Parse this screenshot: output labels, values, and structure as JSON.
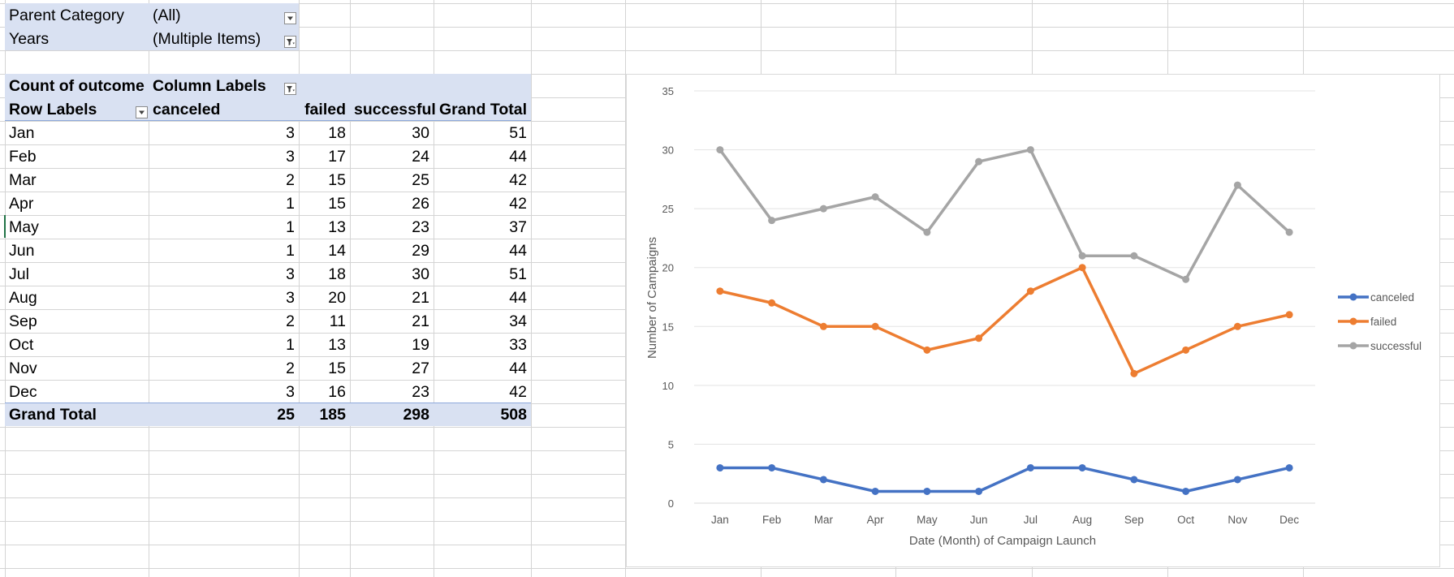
{
  "filters": [
    {
      "label": "Parent Category",
      "value": "(All)"
    },
    {
      "label": "Years",
      "value": "(Multiple Items)"
    }
  ],
  "pivot": {
    "value_field": "Count of outcome",
    "column_labels": "Column Labels",
    "row_labels": "Row Labels",
    "columns": [
      "canceled",
      "failed",
      "successful",
      "Grand Total"
    ],
    "rows": [
      {
        "label": "Jan",
        "canceled": "3",
        "failed": "18",
        "successful": "30",
        "total": "51"
      },
      {
        "label": "Feb",
        "canceled": "3",
        "failed": "17",
        "successful": "24",
        "total": "44"
      },
      {
        "label": "Mar",
        "canceled": "2",
        "failed": "15",
        "successful": "25",
        "total": "42"
      },
      {
        "label": "Apr",
        "canceled": "1",
        "failed": "15",
        "successful": "26",
        "total": "42"
      },
      {
        "label": "May",
        "canceled": "1",
        "failed": "13",
        "successful": "23",
        "total": "37"
      },
      {
        "label": "Jun",
        "canceled": "1",
        "failed": "14",
        "successful": "29",
        "total": "44"
      },
      {
        "label": "Jul",
        "canceled": "3",
        "failed": "18",
        "successful": "30",
        "total": "51"
      },
      {
        "label": "Aug",
        "canceled": "3",
        "failed": "20",
        "successful": "21",
        "total": "44"
      },
      {
        "label": "Sep",
        "canceled": "2",
        "failed": "11",
        "successful": "21",
        "total": "34"
      },
      {
        "label": "Oct",
        "canceled": "1",
        "failed": "13",
        "successful": "19",
        "total": "33"
      },
      {
        "label": "Nov",
        "canceled": "2",
        "failed": "15",
        "successful": "27",
        "total": "44"
      },
      {
        "label": "Dec",
        "canceled": "3",
        "failed": "16",
        "successful": "23",
        "total": "42"
      }
    ],
    "grand_total": {
      "label": "Grand Total",
      "canceled": "25",
      "failed": "185",
      "successful": "298",
      "total": "508"
    }
  },
  "chart_data": {
    "type": "line",
    "categories": [
      "Jan",
      "Feb",
      "Mar",
      "Apr",
      "May",
      "Jun",
      "Jul",
      "Aug",
      "Sep",
      "Oct",
      "Nov",
      "Dec"
    ],
    "series": [
      {
        "name": "canceled",
        "color": "#4472c4",
        "values": [
          3,
          3,
          2,
          1,
          1,
          1,
          3,
          3,
          2,
          1,
          2,
          3
        ]
      },
      {
        "name": "failed",
        "color": "#ed7d31",
        "values": [
          18,
          17,
          15,
          15,
          13,
          14,
          18,
          20,
          11,
          13,
          15,
          16
        ]
      },
      {
        "name": "successful",
        "color": "#a5a5a5",
        "values": [
          30,
          24,
          25,
          26,
          23,
          29,
          30,
          21,
          21,
          19,
          27,
          23
        ]
      }
    ],
    "xlabel": "Date (Month) of Campaign Launch",
    "ylabel": "Number of Campaigns",
    "ylim": [
      0,
      35
    ],
    "yticks": [
      0,
      5,
      10,
      15,
      20,
      25,
      30,
      35
    ],
    "grid": true,
    "legend": "right"
  },
  "colors": {
    "pivot_header_fill": "#d9e1f2",
    "gridline": "#d4d4d4"
  }
}
